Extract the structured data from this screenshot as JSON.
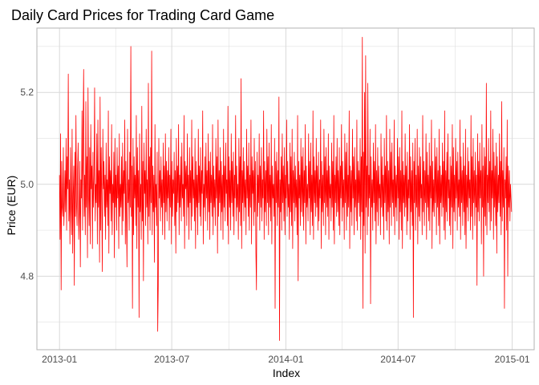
{
  "chart_data": {
    "type": "line",
    "title": "Daily Card Prices for Trading Card Game",
    "xlabel": "Index",
    "ylabel": "Price (EUR)",
    "x_range": [
      "2013-01-01",
      "2014-12-31"
    ],
    "ylim": [
      4.64,
      5.34
    ],
    "x_ticks": [
      {
        "date": "2013-01-01",
        "label": "2013-01"
      },
      {
        "date": "2013-07-01",
        "label": "2013-07"
      },
      {
        "date": "2014-01-01",
        "label": "2014-01"
      },
      {
        "date": "2014-07-01",
        "label": "2014-07"
      },
      {
        "date": "2015-01-01",
        "label": "2015-01"
      }
    ],
    "y_ticks": [
      4.8,
      5.0,
      5.2
    ],
    "grid": true,
    "colors": {
      "series": "#ff0000",
      "grid": "#d9d9d9",
      "panel_border": "#b3b3b3"
    },
    "series": [
      {
        "start_date": "2013-01-01",
        "values": [
          5.02,
          4.88,
          5.11,
          4.77,
          5.05,
          4.95,
          4.93,
          5.08,
          4.91,
          4.96,
          5.03,
          4.94,
          5.1,
          4.9,
          5.06,
          4.99,
          5.24,
          4.92,
          5.01,
          4.87,
          5.08,
          4.95,
          4.89,
          5.12,
          4.85,
          4.98,
          5.04,
          4.78,
          5.07,
          4.93,
          5.15,
          4.96,
          4.91,
          5.03,
          5.09,
          4.88,
          4.94,
          5.05,
          4.82,
          5.01,
          4.97,
          5.16,
          4.9,
          5.11,
          5.25,
          4.93,
          5.02,
          4.89,
          5.18,
          4.95,
          5.06,
          4.84,
          5.21,
          4.98,
          4.91,
          5.08,
          4.87,
          5.13,
          4.99,
          5.04,
          4.86,
          5.07,
          4.95,
          5.02,
          5.21,
          4.92,
          5.0,
          4.96,
          5.11,
          4.87,
          5.14,
          4.95,
          5.03,
          4.83,
          5.19,
          4.9,
          5.08,
          4.97,
          4.81,
          5.12,
          4.99,
          5.05,
          4.93,
          5.02,
          4.88,
          5.09,
          4.95,
          5.01,
          4.91,
          5.16,
          4.85,
          5.06,
          4.98,
          5.03,
          4.92,
          5.13,
          4.89,
          5.0,
          4.96,
          5.07,
          4.84,
          5.1,
          4.95,
          5.02,
          4.9,
          5.08,
          4.97,
          5.04,
          4.86,
          5.11,
          4.93,
          5.0,
          4.95,
          5.06,
          4.89,
          5.09,
          4.92,
          5.03,
          4.98,
          5.14,
          4.87,
          5.05,
          4.94,
          4.82,
          5.12,
          4.96,
          5.01,
          4.9,
          5.07,
          4.95,
          5.3,
          4.93,
          5.04,
          4.73,
          5.1,
          4.89,
          5.06,
          4.97,
          5.02,
          4.91,
          5.15,
          4.86,
          5.08,
          4.95,
          5.03,
          4.71,
          5.11,
          4.94,
          5.0,
          4.88,
          5.17,
          4.92,
          5.05,
          4.79,
          5.09,
          4.98,
          5.03,
          4.91,
          5.12,
          4.95,
          5.01,
          4.87,
          5.22,
          4.93,
          5.06,
          4.9,
          5.08,
          4.96,
          5.29,
          4.89,
          5.04,
          4.94,
          5.02,
          4.83,
          5.13,
          4.95,
          5.0,
          4.91,
          5.07,
          4.68,
          4.78,
          5.1,
          4.97,
          5.03,
          4.92,
          5.06,
          4.95,
          5.01,
          4.89,
          5.09,
          4.96,
          5.04,
          4.88,
          5.11,
          4.94,
          5.05,
          4.92,
          5.03,
          4.97,
          5.08,
          4.9,
          5.02,
          4.95,
          5.12,
          4.87,
          5.05,
          4.93,
          5.01,
          4.98,
          5.07,
          4.91,
          5.03,
          4.85,
          5.1,
          4.94,
          5.04,
          4.96,
          5.13,
          4.89,
          5.02,
          4.95,
          5.06,
          4.92,
          5.09,
          4.97,
          5.0,
          4.93,
          5.15,
          4.86,
          5.05,
          4.99,
          5.04,
          4.91,
          5.11,
          4.95,
          5.02,
          4.88,
          5.08,
          4.96,
          5.03,
          4.9,
          5.14,
          4.93,
          5.06,
          4.97,
          5.01,
          4.92,
          5.1,
          4.86,
          5.05,
          4.95,
          5.02,
          4.89,
          5.12,
          4.96,
          5.04,
          4.93,
          5.08,
          4.91,
          5.03,
          4.98,
          5.16,
          4.87,
          5.0,
          4.95,
          5.06,
          4.92,
          5.09,
          4.97,
          5.03,
          4.9,
          5.11,
          4.94,
          5.05,
          4.88,
          5.07,
          4.96,
          5.02,
          4.93,
          5.13,
          4.89,
          5.04,
          4.95,
          5.01,
          4.91,
          5.1,
          4.97,
          5.06,
          4.85,
          5.14,
          4.93,
          5.03,
          4.96,
          5.08,
          4.9,
          5.05,
          4.94,
          5.02,
          4.88,
          5.12,
          4.95,
          5.04,
          4.92,
          5.09,
          4.98,
          5.01,
          4.91,
          5.17,
          4.87,
          5.06,
          4.95,
          5.03,
          4.9,
          5.11,
          4.96,
          5.05,
          4.93,
          5.07,
          4.89,
          5.02,
          4.97,
          5.15,
          4.92,
          5.04,
          4.95,
          5.0,
          4.88,
          5.1,
          4.94,
          5.06,
          4.91,
          5.23,
          4.86,
          5.03,
          4.96,
          5.08,
          4.92,
          5.05,
          4.95,
          5.01,
          4.89,
          5.12,
          4.97,
          5.04,
          4.93,
          5.09,
          4.9,
          5.02,
          4.95,
          5.14,
          4.87,
          5.06,
          4.98,
          5.03,
          4.91,
          5.1,
          4.94,
          5.05,
          4.85,
          4.77,
          5.07,
          4.93,
          5.02,
          4.96,
          5.11,
          4.9,
          5.04,
          4.95,
          5.08,
          4.92,
          5.01,
          4.97,
          5.16,
          4.88,
          5.05,
          4.94,
          5.03,
          4.91,
          5.12,
          4.96,
          5.06,
          4.89,
          5.09,
          4.95,
          5.02,
          4.92,
          5.13,
          4.87,
          5.04,
          4.97,
          5.0,
          4.93,
          5.1,
          4.73,
          5.05,
          4.96,
          5.07,
          4.91,
          5.03,
          4.95,
          5.19,
          4.66,
          5.01,
          4.94,
          5.06,
          4.9,
          5.11,
          4.96,
          5.04,
          4.92,
          5.08,
          4.89,
          5.02,
          4.97,
          5.14,
          4.93,
          5.05,
          4.95,
          5.0,
          4.88,
          5.09,
          4.94,
          5.06,
          4.91,
          5.12,
          4.86,
          5.03,
          4.96,
          5.07,
          4.92,
          5.04,
          4.95,
          5.01,
          4.89,
          5.15,
          4.79,
          5.05,
          4.97,
          5.02,
          4.91,
          5.1,
          4.94,
          5.06,
          4.93,
          5.08,
          4.9,
          5.03,
          4.96,
          5.13,
          4.87,
          5.04,
          4.95,
          5.0,
          4.92,
          5.11,
          4.97,
          5.05,
          4.89,
          5.09,
          4.94,
          5.02,
          4.91,
          5.16,
          4.88,
          5.06,
          4.96,
          5.03,
          4.93,
          5.1,
          4.95,
          5.04,
          4.9,
          5.07,
          4.92,
          5.01,
          4.97,
          5.14,
          4.86,
          5.05,
          4.94,
          5.02,
          4.91,
          5.12,
          4.96,
          5.06,
          4.89,
          5.08,
          4.95,
          5.03,
          4.93,
          5.11,
          4.88,
          5.04,
          4.97,
          5.0,
          4.92,
          5.09,
          4.95,
          5.05,
          4.9,
          5.15,
          4.87,
          5.02,
          4.96,
          5.06,
          4.93,
          5.1,
          4.94,
          5.03,
          4.91,
          5.08,
          4.89,
          5.04,
          4.97,
          5.13,
          4.92,
          5.05,
          4.95,
          5.01,
          4.88,
          5.11,
          4.96,
          5.07,
          4.9,
          5.09,
          4.93,
          5.02,
          4.95,
          5.16,
          4.86,
          5.04,
          4.94,
          5.03,
          4.91,
          5.12,
          4.97,
          5.06,
          4.89,
          5.08,
          4.95,
          5.01,
          4.92,
          5.14,
          4.9,
          5.05,
          4.96,
          5.03,
          4.93,
          5.1,
          4.88,
          5.06,
          4.94,
          5.32,
          4.73,
          5.07,
          4.91,
          5.2,
          4.85,
          5.28,
          4.95,
          5.04,
          4.89,
          5.22,
          4.93,
          5.02,
          4.97,
          5.12,
          4.74,
          5.06,
          4.95,
          5.01,
          4.9,
          5.09,
          4.96,
          5.05,
          4.92,
          5.13,
          4.87,
          5.03,
          4.94,
          5.08,
          4.91,
          5.04,
          4.97,
          5.0,
          4.89,
          5.11,
          4.95,
          5.06,
          4.93,
          5.02,
          4.88,
          5.1,
          4.96,
          5.04,
          4.92,
          5.15,
          4.9,
          5.05,
          4.94,
          5.03,
          4.87,
          5.12,
          4.95,
          5.07,
          4.91,
          5.09,
          4.96,
          5.01,
          4.93,
          5.14,
          4.89,
          5.04,
          4.95,
          5.02,
          4.92,
          5.1,
          4.97,
          5.06,
          4.88,
          5.08,
          4.94,
          5.03,
          4.9,
          5.16,
          4.86,
          5.05,
          4.96,
          5.02,
          4.93,
          5.11,
          4.95,
          5.04,
          4.89,
          5.07,
          4.92,
          5.01,
          4.97,
          5.13,
          4.88,
          5.06,
          4.94,
          5.03,
          4.91,
          5.09,
          4.71,
          5.05,
          4.96,
          5.1,
          4.9,
          5.02,
          4.95,
          5.12,
          4.87,
          5.04,
          4.93,
          5.08,
          4.92,
          5.06,
          4.97,
          5.0,
          4.89,
          5.15,
          4.94,
          5.05,
          4.91,
          5.03,
          4.96,
          5.11,
          4.88,
          5.07,
          4.95,
          5.02,
          4.92,
          5.09,
          4.9,
          5.04,
          4.97,
          5.14,
          4.86,
          5.05,
          4.94,
          5.01,
          4.93,
          5.1,
          4.96,
          5.06,
          4.89,
          5.08,
          4.95,
          5.03,
          4.91,
          5.12,
          4.87,
          5.04,
          4.96,
          5.02,
          4.93,
          5.09,
          4.95,
          5.05,
          4.9,
          5.16,
          4.88,
          5.03,
          4.94,
          5.07,
          4.92,
          5.11,
          4.97,
          5.01,
          4.91,
          5.06,
          4.89,
          5.04,
          4.95,
          5.13,
          4.86,
          5.08,
          4.94,
          5.02,
          4.92,
          5.1,
          4.97,
          5.05,
          4.9,
          5.07,
          4.95,
          5.01,
          4.93,
          5.14,
          4.88,
          5.06,
          4.96,
          5.03,
          4.91,
          5.09,
          4.94,
          5.04,
          4.89,
          5.12,
          4.86,
          5.02,
          4.95,
          5.08,
          4.92,
          5.05,
          4.97,
          5.01,
          4.9,
          5.15,
          4.93,
          5.06,
          4.88,
          5.1,
          4.96,
          5.03,
          4.91,
          5.07,
          4.95,
          5.02,
          4.78,
          5.11,
          4.94,
          5.05,
          4.92,
          5.09,
          4.97,
          5.03,
          4.87,
          5.13,
          4.95,
          5.04,
          4.8,
          5.08,
          4.93,
          5.06,
          4.91,
          5.22,
          4.89,
          5.02,
          4.96,
          5.1,
          4.94,
          5.05,
          4.9,
          5.16,
          4.92,
          5.03,
          4.97,
          5.12,
          4.88,
          5.07,
          4.95,
          5.04,
          4.91,
          5.09,
          4.85,
          5.06,
          4.94,
          5.02,
          4.96,
          5.11,
          4.93,
          5.05,
          4.89,
          5.18,
          4.92,
          5.03,
          4.95,
          5.08,
          4.73,
          5.01,
          4.97,
          5.06,
          4.9,
          5.14,
          4.8,
          5.04,
          4.95,
          5.03,
          4.92,
          5.0,
          4.97,
          4.94
        ]
      }
    ]
  }
}
